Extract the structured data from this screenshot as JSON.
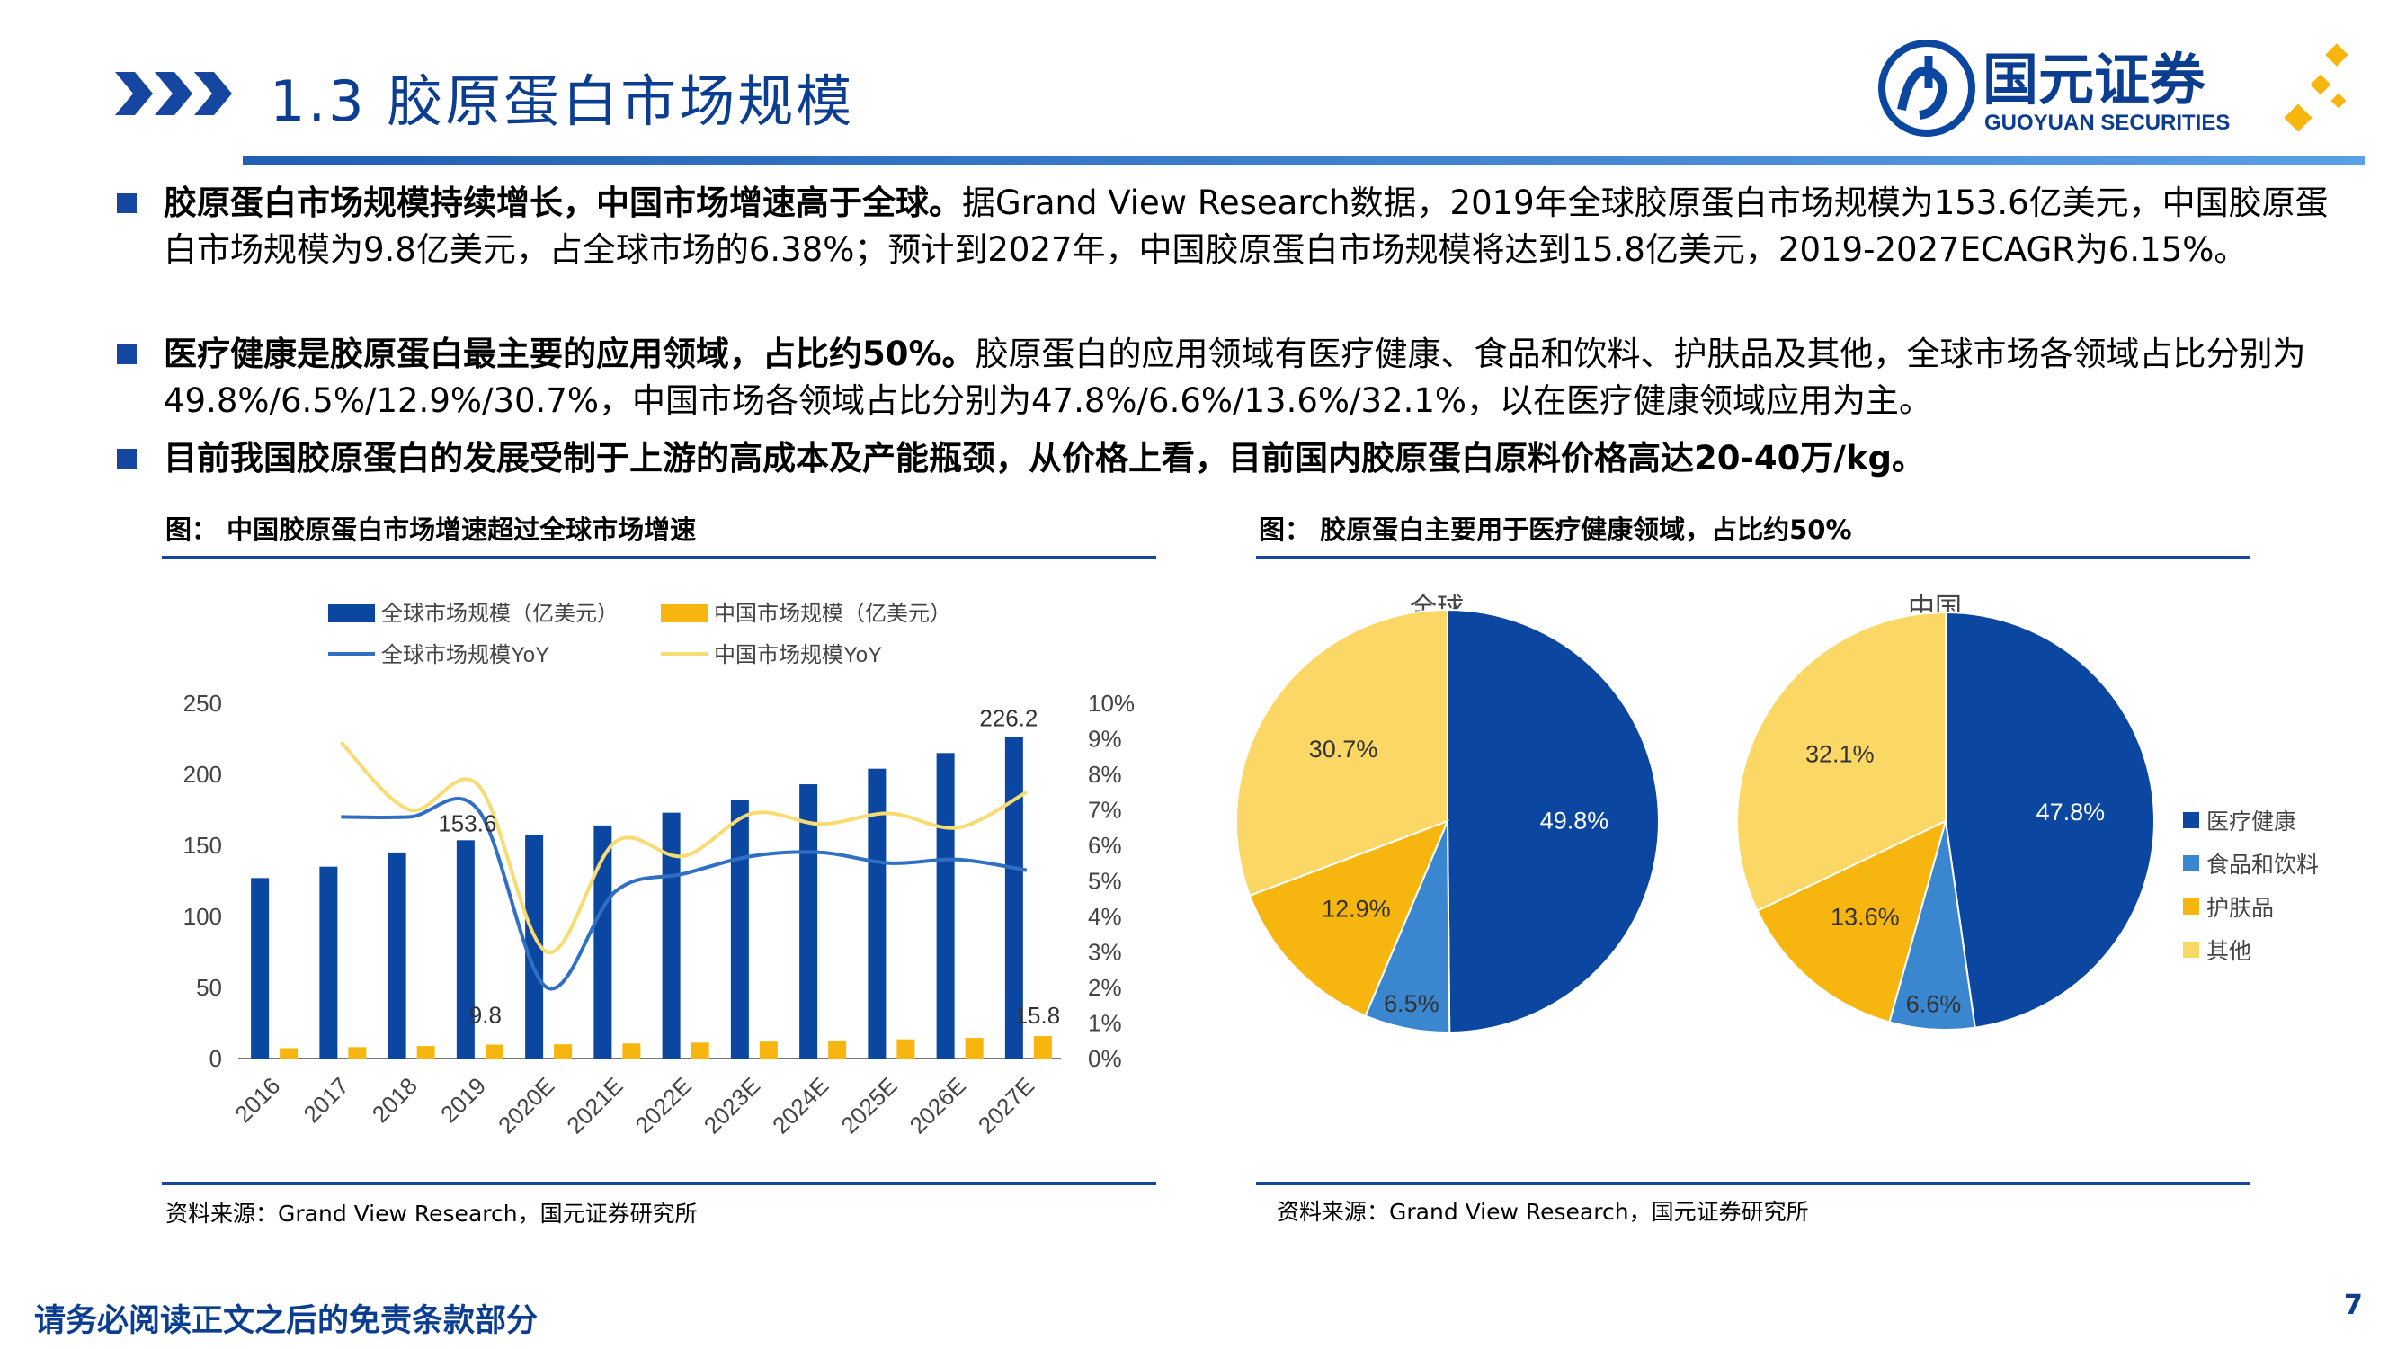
{
  "header": {
    "title": "1.3 胶原蛋白市场规模",
    "logo_cn": "国元证券",
    "logo_en": "GUOYUAN SECURITIES"
  },
  "bullets": [
    {
      "bold": "胶原蛋白市场规模持续增长，中国市场增速高于全球。",
      "text": "据Grand View Research数据，2019年全球胶原蛋白市场规模为153.6亿美元，中国胶原蛋白市场规模为9.8亿美元，占全球市场的6.38%；预计到2027年，中国胶原蛋白市场规模将达到15.8亿美元，2019-2027ECAGR为6.15%。"
    },
    {
      "bold": "医疗健康是胶原蛋白最主要的应用领域，占比约50%。",
      "text": "胶原蛋白的应用领域有医疗健康、食品和饮料、护肤品及其他，全球市场各领域占比分别为49.8%/6.5%/12.9%/30.7%，中国市场各领域占比分别为47.8%/6.6%/13.6%/32.1%，以在医疗健康领域应用为主。"
    },
    {
      "bold": "目前我国胶原蛋白的发展受制于上游的高成本及产能瓶颈，从价格上看，目前国内胶原蛋白原料价格高达20-40万/kg。",
      "text": ""
    }
  ],
  "figures": {
    "left_title": "图：  中国胶原蛋白市场增速超过全球市场增速",
    "right_title": "图：  胶原蛋白主要用于医疗健康领域，占比约50%",
    "source": "资料来源：Grand View Research，国元证券研究所"
  },
  "footer": {
    "disclaimer": "请务必阅读正文之后的免责条款部分",
    "page": "7"
  },
  "colors": {
    "dark_blue": "#0b47a1",
    "gold": "#f6b60f",
    "light_blue": "#3a87d0",
    "light_yellow": "#fbd866",
    "title_blue": "#0b3d91"
  },
  "chart_data": [
    {
      "type": "bar",
      "categories": [
        "2016",
        "2017",
        "2018",
        "2019",
        "2020E",
        "2021E",
        "2022E",
        "2023E",
        "2024E",
        "2025E",
        "2026E",
        "2027E"
      ],
      "series": [
        {
          "name": "全球市场规模（亿美元）",
          "axis": "left",
          "values": [
            127,
            135,
            145,
            153.6,
            157,
            164,
            173,
            182,
            193,
            204,
            215,
            226.2
          ]
        },
        {
          "name": "中国市场规模（亿美元）",
          "axis": "left",
          "values": [
            7.3,
            8.0,
            8.8,
            9.8,
            10.0,
            10.6,
            11.2,
            11.9,
            12.6,
            13.5,
            14.5,
            15.8
          ]
        },
        {
          "name": "全球市场规模YoY",
          "axis": "right",
          "type": "line",
          "values": [
            null,
            6.8,
            6.8,
            7.0,
            2.0,
            4.7,
            5.2,
            5.7,
            5.8,
            5.5,
            5.6,
            5.3
          ]
        },
        {
          "name": "中国市场规模YoY",
          "axis": "right",
          "type": "line",
          "values": [
            null,
            8.9,
            7.0,
            7.7,
            3.0,
            6.1,
            5.7,
            6.9,
            6.6,
            6.9,
            6.5,
            7.5
          ]
        }
      ],
      "data_labels": [
        "226.2",
        "153.6",
        "9.8",
        "15.8"
      ],
      "y_left": {
        "ticks": [
          "0",
          "50",
          "100",
          "150",
          "200",
          "250"
        ],
        "ylim": [
          0,
          250
        ]
      },
      "y_right": {
        "ticks": [
          "0%",
          "1%",
          "2%",
          "3%",
          "4%",
          "5%",
          "6%",
          "7%",
          "8%",
          "9%",
          "10%"
        ],
        "ylim": [
          0,
          10
        ]
      },
      "legend_position": "top-left"
    },
    {
      "type": "pie",
      "title": "全球",
      "labels": [
        "医疗健康",
        "食品和饮料",
        "护肤品",
        "其他"
      ],
      "values": [
        49.8,
        6.5,
        12.9,
        30.7
      ],
      "value_labels": [
        "49.8%",
        "6.5%",
        "12.9%",
        "30.7%"
      ]
    },
    {
      "type": "pie",
      "title": "中国",
      "labels": [
        "医疗健康",
        "食品和饮料",
        "护肤品",
        "其他"
      ],
      "values": [
        47.8,
        6.6,
        13.6,
        32.1
      ],
      "value_labels": [
        "47.8%",
        "6.6%",
        "13.6%",
        "32.1%"
      ],
      "legend_position": "right"
    }
  ]
}
